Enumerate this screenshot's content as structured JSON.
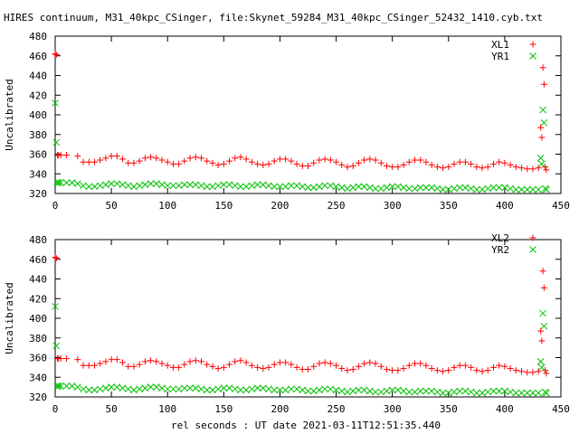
{
  "title": "HIRES continuum, M31_40kpc_CSinger, file:Skynet_59284_M31_40kpc_CSinger_52432_1410.cyb.txt",
  "xlabel": "rel seconds : UT date 2021-03-11T12:51:35.440",
  "colors": {
    "x_series": "#ff0000",
    "y_series": "#00c000"
  },
  "chart_data": [
    {
      "type": "scatter",
      "ylabel": "Uncalibrated",
      "xlim": [
        0,
        450
      ],
      "ylim": [
        320,
        480
      ],
      "xticks": [
        0,
        50,
        100,
        150,
        200,
        250,
        300,
        350,
        400,
        450
      ],
      "yticks": [
        320,
        340,
        360,
        380,
        400,
        420,
        440,
        460,
        480
      ],
      "grid": false,
      "legend": "top-right",
      "series": [
        {
          "name": "XL1",
          "marker": "plus",
          "color": "#ff0000",
          "x": [
            0,
            1,
            2,
            3,
            5,
            10,
            20,
            25,
            30,
            35,
            40,
            45,
            50,
            55,
            60,
            65,
            70,
            75,
            80,
            85,
            90,
            95,
            100,
            105,
            110,
            115,
            120,
            125,
            130,
            135,
            140,
            145,
            150,
            155,
            160,
            165,
            170,
            175,
            180,
            185,
            190,
            195,
            200,
            205,
            210,
            215,
            220,
            225,
            230,
            235,
            240,
            245,
            250,
            255,
            260,
            265,
            270,
            275,
            280,
            285,
            290,
            295,
            300,
            305,
            310,
            315,
            320,
            325,
            330,
            335,
            340,
            345,
            350,
            355,
            360,
            365,
            370,
            375,
            380,
            385,
            390,
            395,
            400,
            405,
            410,
            415,
            420,
            425,
            430,
            432,
            433,
            434,
            435,
            436,
            437
          ],
          "y": [
            462,
            461,
            359,
            359,
            359,
            359,
            358,
            352,
            352,
            352,
            354,
            356,
            358,
            358,
            355,
            351,
            351,
            353,
            356,
            357,
            356,
            354,
            352,
            350,
            350,
            353,
            356,
            357,
            356,
            353,
            351,
            349,
            350,
            353,
            356,
            357,
            355,
            352,
            350,
            349,
            350,
            353,
            355,
            355,
            353,
            350,
            348,
            348,
            351,
            354,
            355,
            354,
            352,
            349,
            347,
            348,
            351,
            354,
            355,
            354,
            351,
            348,
            347,
            347,
            349,
            352,
            354,
            354,
            352,
            349,
            347,
            346,
            347,
            350,
            352,
            352,
            350,
            347,
            346,
            347,
            350,
            352,
            351,
            349,
            347,
            346,
            345,
            345,
            346,
            387,
            377,
            448,
            431,
            347,
            344
          ]
        },
        {
          "name": "YR1",
          "marker": "cross",
          "color": "#00c000",
          "x": [
            0,
            1,
            2,
            3,
            5,
            10,
            15,
            20,
            25,
            30,
            35,
            40,
            45,
            50,
            55,
            60,
            65,
            70,
            75,
            80,
            85,
            90,
            95,
            100,
            105,
            110,
            115,
            120,
            125,
            130,
            135,
            140,
            145,
            150,
            155,
            160,
            165,
            170,
            175,
            180,
            185,
            190,
            195,
            200,
            205,
            210,
            215,
            220,
            225,
            230,
            235,
            240,
            245,
            250,
            255,
            260,
            265,
            270,
            275,
            280,
            285,
            290,
            295,
            300,
            305,
            310,
            315,
            320,
            325,
            330,
            335,
            340,
            345,
            350,
            355,
            360,
            365,
            370,
            375,
            380,
            385,
            390,
            395,
            400,
            405,
            410,
            415,
            420,
            425,
            430,
            432,
            433,
            434,
            435,
            436,
            437
          ],
          "y": [
            412,
            372,
            331,
            331,
            331,
            331,
            331,
            330,
            328,
            327,
            327,
            328,
            329,
            330,
            330,
            329,
            328,
            327,
            328,
            329,
            330,
            330,
            329,
            328,
            328,
            328,
            329,
            329,
            329,
            328,
            327,
            327,
            328,
            329,
            329,
            328,
            327,
            327,
            328,
            329,
            329,
            328,
            327,
            327,
            327,
            328,
            328,
            327,
            326,
            326,
            327,
            328,
            328,
            327,
            326,
            325,
            326,
            327,
            327,
            326,
            325,
            325,
            326,
            327,
            327,
            326,
            325,
            325,
            326,
            326,
            326,
            325,
            324,
            324,
            325,
            326,
            326,
            325,
            324,
            324,
            325,
            326,
            326,
            326,
            325,
            324,
            324,
            324,
            324,
            324,
            356,
            350,
            405,
            392,
            325,
            324
          ]
        }
      ]
    },
    {
      "type": "scatter",
      "ylabel": "Uncalibrated",
      "xlim": [
        0,
        450
      ],
      "ylim": [
        320,
        480
      ],
      "xticks": [
        0,
        50,
        100,
        150,
        200,
        250,
        300,
        350,
        400,
        450
      ],
      "yticks": [
        320,
        340,
        360,
        380,
        400,
        420,
        440,
        460,
        480
      ],
      "grid": false,
      "legend": "top-right",
      "series": [
        {
          "name": "XL2",
          "marker": "plus",
          "color": "#ff0000",
          "x": [
            0,
            1,
            2,
            3,
            5,
            10,
            20,
            25,
            30,
            35,
            40,
            45,
            50,
            55,
            60,
            65,
            70,
            75,
            80,
            85,
            90,
            95,
            100,
            105,
            110,
            115,
            120,
            125,
            130,
            135,
            140,
            145,
            150,
            155,
            160,
            165,
            170,
            175,
            180,
            185,
            190,
            195,
            200,
            205,
            210,
            215,
            220,
            225,
            230,
            235,
            240,
            245,
            250,
            255,
            260,
            265,
            270,
            275,
            280,
            285,
            290,
            295,
            300,
            305,
            310,
            315,
            320,
            325,
            330,
            335,
            340,
            345,
            350,
            355,
            360,
            365,
            370,
            375,
            380,
            385,
            390,
            395,
            400,
            405,
            410,
            415,
            420,
            425,
            430,
            432,
            433,
            434,
            435,
            436,
            437
          ],
          "y": [
            462,
            461,
            359,
            359,
            359,
            359,
            358,
            352,
            352,
            352,
            354,
            356,
            358,
            358,
            355,
            351,
            351,
            353,
            356,
            357,
            356,
            354,
            352,
            350,
            350,
            353,
            356,
            357,
            356,
            353,
            351,
            349,
            350,
            353,
            356,
            357,
            355,
            352,
            350,
            349,
            350,
            353,
            355,
            355,
            353,
            350,
            348,
            348,
            351,
            354,
            355,
            354,
            352,
            349,
            347,
            348,
            351,
            354,
            355,
            354,
            351,
            348,
            347,
            347,
            349,
            352,
            354,
            354,
            352,
            349,
            347,
            346,
            347,
            350,
            352,
            352,
            350,
            347,
            346,
            347,
            350,
            352,
            351,
            349,
            347,
            346,
            345,
            345,
            346,
            387,
            377,
            448,
            431,
            347,
            344
          ]
        },
        {
          "name": "YR2",
          "marker": "cross",
          "color": "#00c000",
          "x": [
            0,
            1,
            2,
            3,
            5,
            10,
            15,
            20,
            25,
            30,
            35,
            40,
            45,
            50,
            55,
            60,
            65,
            70,
            75,
            80,
            85,
            90,
            95,
            100,
            105,
            110,
            115,
            120,
            125,
            130,
            135,
            140,
            145,
            150,
            155,
            160,
            165,
            170,
            175,
            180,
            185,
            190,
            195,
            200,
            205,
            210,
            215,
            220,
            225,
            230,
            235,
            240,
            245,
            250,
            255,
            260,
            265,
            270,
            275,
            280,
            285,
            290,
            295,
            300,
            305,
            310,
            315,
            320,
            325,
            330,
            335,
            340,
            345,
            350,
            355,
            360,
            365,
            370,
            375,
            380,
            385,
            390,
            395,
            400,
            405,
            410,
            415,
            420,
            425,
            430,
            432,
            433,
            434,
            435,
            436,
            437
          ],
          "y": [
            412,
            372,
            331,
            331,
            331,
            331,
            331,
            330,
            328,
            327,
            327,
            328,
            329,
            330,
            330,
            329,
            328,
            327,
            328,
            329,
            330,
            330,
            329,
            328,
            328,
            328,
            329,
            329,
            329,
            328,
            327,
            327,
            328,
            329,
            329,
            328,
            327,
            327,
            328,
            329,
            329,
            328,
            327,
            327,
            327,
            328,
            328,
            327,
            326,
            326,
            327,
            328,
            328,
            327,
            326,
            325,
            326,
            327,
            327,
            326,
            325,
            325,
            326,
            327,
            327,
            326,
            325,
            325,
            326,
            326,
            326,
            325,
            324,
            324,
            325,
            326,
            326,
            325,
            324,
            324,
            325,
            326,
            326,
            326,
            325,
            324,
            324,
            324,
            324,
            324,
            356,
            350,
            405,
            392,
            325,
            324
          ]
        }
      ]
    }
  ]
}
